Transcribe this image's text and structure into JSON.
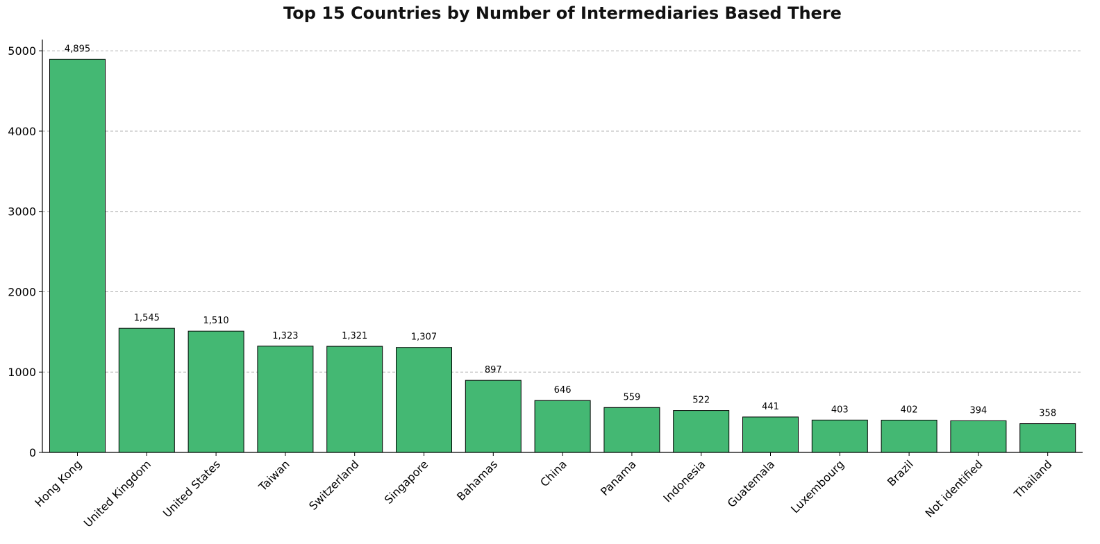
{
  "chart_data": {
    "type": "bar",
    "title": "Top 15 Countries by Number of Intermediaries Based There",
    "xlabel": "",
    "ylabel": "",
    "categories": [
      "Hong Kong",
      "United Kingdom",
      "United States",
      "Taiwan",
      "Switzerland",
      "Singapore",
      "Bahamas",
      "China",
      "Panama",
      "Indonesia",
      "Guatemala",
      "Luxembourg",
      "Brazil",
      "Not identified",
      "Thailand"
    ],
    "values": [
      4895,
      1545,
      1510,
      1323,
      1321,
      1307,
      897,
      646,
      559,
      522,
      441,
      403,
      402,
      394,
      358
    ],
    "value_labels": [
      "4,895",
      "1,545",
      "1,510",
      "1,323",
      "1,321",
      "1,307",
      "897",
      "646",
      "559",
      "522",
      "441",
      "403",
      "402",
      "394",
      "358"
    ],
    "yticks": [
      "0",
      "1000",
      "2000",
      "3000",
      "4000",
      "5000"
    ],
    "ylim": [
      0,
      5140
    ],
    "grid": "y-dashed",
    "bar_color": "#44b873",
    "bar_edge_color": "#000000",
    "grid_color": "#b0b0b0"
  }
}
